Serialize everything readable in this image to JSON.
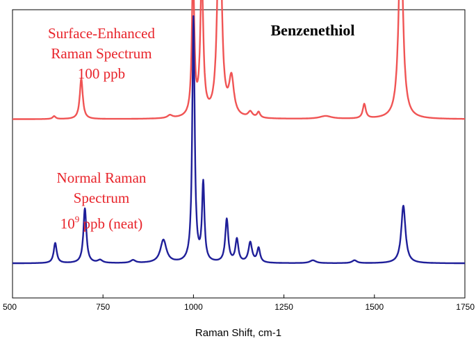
{
  "chart_data": {
    "type": "line",
    "title": "Benzenethiol",
    "xlabel": "Raman Shift, cm-1",
    "ylabel": "",
    "xlim": [
      500,
      1750
    ],
    "x_ticks": [
      500,
      750,
      1000,
      1250,
      1500,
      1750
    ],
    "grid": false,
    "y_axis_values_shown": false,
    "colors": {
      "sers": "#f05454",
      "normal": "#1f1f99",
      "annotation": "#e8232a",
      "axis": "#000000"
    },
    "series": [
      {
        "label_lines": [
          "Surface-Enhanced",
          "Raman Spectrum",
          "100 ppb"
        ],
        "baseline": 0.62,
        "peaks": [
          {
            "x": 615,
            "height": 0.01,
            "width": 5
          },
          {
            "x": 690,
            "height": 0.14,
            "width": 5
          },
          {
            "x": 935,
            "height": 0.01,
            "width": 8
          },
          {
            "x": 999,
            "height": 0.5,
            "width": 4
          },
          {
            "x": 1023,
            "height": 0.48,
            "width": 5
          },
          {
            "x": 1072,
            "height": 0.88,
            "width": 6
          },
          {
            "x": 1105,
            "height": 0.13,
            "width": 8
          },
          {
            "x": 1157,
            "height": 0.02,
            "width": 7
          },
          {
            "x": 1180,
            "height": 0.02,
            "width": 5
          },
          {
            "x": 1365,
            "height": 0.01,
            "width": 20
          },
          {
            "x": 1472,
            "height": 0.05,
            "width": 5
          },
          {
            "x": 1573,
            "height": 0.67,
            "width": 7
          }
        ]
      },
      {
        "label_lines": [
          "Normal Raman",
          "Spectrum",
          "10",
          "9",
          " ppb (neat)"
        ],
        "baseline": 0.12,
        "peaks": [
          {
            "x": 618,
            "height": 0.07,
            "width": 5
          },
          {
            "x": 700,
            "height": 0.19,
            "width": 5
          },
          {
            "x": 742,
            "height": 0.01,
            "width": 8
          },
          {
            "x": 833,
            "height": 0.01,
            "width": 8
          },
          {
            "x": 917,
            "height": 0.08,
            "width": 10
          },
          {
            "x": 1000,
            "height": 0.85,
            "width": 4
          },
          {
            "x": 1027,
            "height": 0.27,
            "width": 4
          },
          {
            "x": 1092,
            "height": 0.15,
            "width": 5
          },
          {
            "x": 1120,
            "height": 0.08,
            "width": 5
          },
          {
            "x": 1157,
            "height": 0.07,
            "width": 6
          },
          {
            "x": 1180,
            "height": 0.05,
            "width": 5
          },
          {
            "x": 1330,
            "height": 0.01,
            "width": 10
          },
          {
            "x": 1445,
            "height": 0.01,
            "width": 8
          },
          {
            "x": 1580,
            "height": 0.2,
            "width": 7
          }
        ]
      }
    ]
  }
}
